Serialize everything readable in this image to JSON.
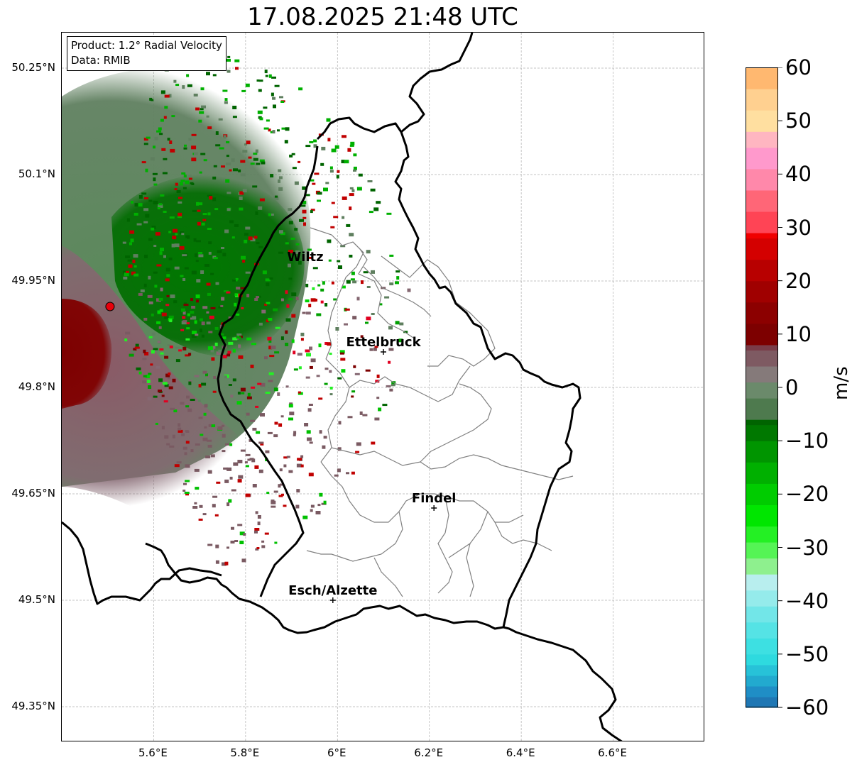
{
  "title": "17.08.2025 21:48 UTC",
  "info": {
    "product": "Product: 1.2° Radial Velocity",
    "data_source": "Data: RMIB"
  },
  "map": {
    "lon_range": [
      5.4,
      6.8
    ],
    "lat_range": [
      49.3,
      50.3
    ],
    "gridlines": true,
    "lat_ticks": [
      {
        "value": 50.25,
        "label": "50.25°N"
      },
      {
        "value": 50.1,
        "label": "50.1°N"
      },
      {
        "value": 49.95,
        "label": "49.95°N"
      },
      {
        "value": 49.8,
        "label": "49.8°N"
      },
      {
        "value": 49.65,
        "label": "49.65°N"
      },
      {
        "value": 49.5,
        "label": "49.5°N"
      },
      {
        "value": 49.35,
        "label": "49.35°N"
      }
    ],
    "lon_ticks": [
      {
        "value": 5.6,
        "label": "5.6°E"
      },
      {
        "value": 5.8,
        "label": "5.8°E"
      },
      {
        "value": 6.0,
        "label": "6°E"
      },
      {
        "value": 6.2,
        "label": "6.2°E"
      },
      {
        "value": 6.4,
        "label": "6.4°E"
      },
      {
        "value": 6.6,
        "label": "6.6°E"
      }
    ],
    "cities": [
      {
        "name": "Wiltz",
        "lon": 5.93,
        "lat": 49.97,
        "marker": false
      },
      {
        "name": "Ettelbruck",
        "lon": 6.1,
        "lat": 49.85,
        "marker": true
      },
      {
        "name": "Findel",
        "lon": 6.21,
        "lat": 49.63,
        "marker": true
      },
      {
        "name": "Esch/Alzette",
        "lon": 5.99,
        "lat": 49.5,
        "marker": true
      }
    ],
    "radar_site": {
      "lon": 5.505,
      "lat": 49.914,
      "color": "#e8000b"
    },
    "colors": {
      "border": "#000000",
      "canton_boundary": "#808080",
      "grid": "#b0b0b0"
    }
  },
  "colorbar": {
    "unit": "m/s",
    "range": [
      -60,
      60
    ],
    "ticks": [
      {
        "value": 60,
        "label": "60"
      },
      {
        "value": 50,
        "label": "50"
      },
      {
        "value": 40,
        "label": "40"
      },
      {
        "value": 30,
        "label": "30"
      },
      {
        "value": 20,
        "label": "20"
      },
      {
        "value": 10,
        "label": "10"
      },
      {
        "value": 0,
        "label": "0"
      },
      {
        "value": -10,
        "label": "−10"
      },
      {
        "value": -20,
        "label": "−20"
      },
      {
        "value": -30,
        "label": "−30"
      },
      {
        "value": -40,
        "label": "−40"
      },
      {
        "value": -50,
        "label": "−50"
      },
      {
        "value": -60,
        "label": "−60"
      }
    ],
    "stops": [
      {
        "v": -60,
        "c": "#1f77b4"
      },
      {
        "v": -58,
        "c": "#1f8ec6"
      },
      {
        "v": -56,
        "c": "#22aacf"
      },
      {
        "v": -54,
        "c": "#27c2d8"
      },
      {
        "v": -52,
        "c": "#2edadf"
      },
      {
        "v": -50,
        "c": "#3de0e2"
      },
      {
        "v": -47,
        "c": "#55e3e5"
      },
      {
        "v": -44,
        "c": "#72e6e8"
      },
      {
        "v": -41,
        "c": "#95ebeb"
      },
      {
        "v": -38,
        "c": "#b8eeee"
      },
      {
        "v": -35,
        "c": "#8ef08e"
      },
      {
        "v": -32,
        "c": "#55f455"
      },
      {
        "v": -29,
        "c": "#24f024"
      },
      {
        "v": -26,
        "c": "#00e600"
      },
      {
        "v": -22,
        "c": "#00cc00"
      },
      {
        "v": -18,
        "c": "#00b000"
      },
      {
        "v": -14,
        "c": "#009500"
      },
      {
        "v": -10,
        "c": "#007800"
      },
      {
        "v": -7,
        "c": "#006400"
      },
      {
        "v": -6,
        "c": "#4e7a4e"
      },
      {
        "v": -2,
        "c": "#6b8a6b"
      },
      {
        "v": 1,
        "c": "#857a7a"
      },
      {
        "v": 4,
        "c": "#7e5a62"
      },
      {
        "v": 7,
        "c": "#7a3c48"
      },
      {
        "v": 8,
        "c": "#7d0000"
      },
      {
        "v": 12,
        "c": "#8c0000"
      },
      {
        "v": 16,
        "c": "#a00000"
      },
      {
        "v": 20,
        "c": "#b80000"
      },
      {
        "v": 24,
        "c": "#d40000"
      },
      {
        "v": 28,
        "c": "#f00000"
      },
      {
        "v": 29,
        "c": "#ff4455"
      },
      {
        "v": 33,
        "c": "#ff6677"
      },
      {
        "v": 37,
        "c": "#ff88aa"
      },
      {
        "v": 41,
        "c": "#ff99cc"
      },
      {
        "v": 45,
        "c": "#ffb6c1"
      },
      {
        "v": 48,
        "c": "#ffdfa0"
      },
      {
        "v": 52,
        "c": "#ffd090"
      },
      {
        "v": 56,
        "c": "#ffb870"
      },
      {
        "v": 60,
        "c": "#ffa060"
      }
    ]
  }
}
